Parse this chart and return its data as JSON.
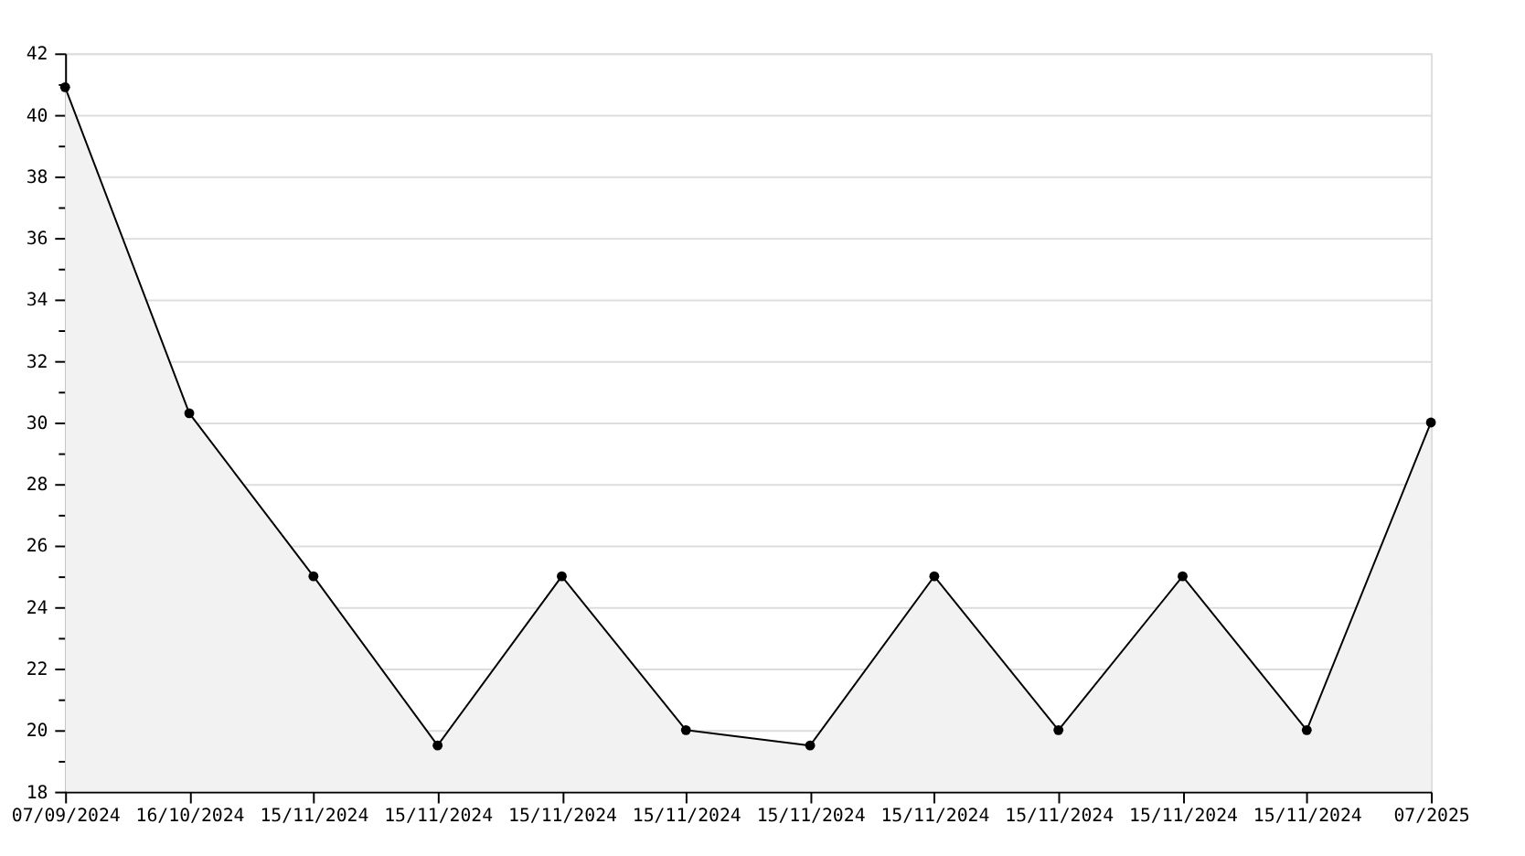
{
  "chart_data": {
    "type": "area",
    "categories": [
      "07/09/2024",
      "16/10/2024",
      "15/11/2024",
      "15/11/2024",
      "15/11/2024",
      "15/11/2024",
      "15/11/2024",
      "15/11/2024",
      "15/11/2024",
      "15/11/2024",
      "15/11/2024",
      "07/2025"
    ],
    "series": [
      {
        "color": "#000000",
        "values": [
          40.9,
          30.3,
          25,
          19.5,
          25,
          20,
          19.5,
          25,
          20,
          25,
          20,
          30
        ]
      }
    ],
    "ylim": [
      18,
      42
    ],
    "yticks": [
      18,
      {
        "value": 19,
        "label": null
      },
      20,
      {
        "value": 21,
        "label": null
      },
      22,
      {
        "value": 23,
        "label": null
      },
      24,
      {
        "value": 25,
        "label": null
      },
      26,
      {
        "value": 27,
        "label": null
      },
      28,
      {
        "value": 29,
        "label": null
      },
      30,
      {
        "value": 31,
        "label": null
      },
      32,
      {
        "value": 33,
        "label": null
      },
      34,
      {
        "value": 35,
        "label": null
      },
      36,
      {
        "value": 37,
        "label": null
      },
      38,
      {
        "value": 39,
        "label": null
      },
      40,
      {
        "value": 41,
        "label": null
      },
      42
    ],
    "grid": "y",
    "marker": "circle",
    "line_style": "solid"
  }
}
